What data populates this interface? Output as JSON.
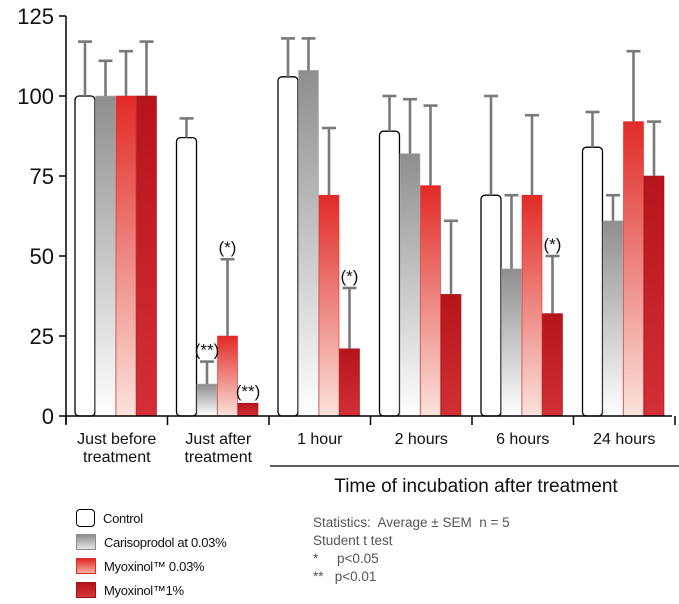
{
  "chart_data": {
    "type": "bar",
    "categories": [
      "Just before\ntreatment",
      "Just after\ntreatment",
      "1 hour",
      "2 hours",
      "6 hours",
      "24 hours"
    ],
    "ylim": [
      0,
      125
    ],
    "yticks": [
      0,
      25,
      50,
      75,
      100,
      125
    ],
    "grid": false,
    "legend_position": "bottom-left",
    "xlabel": "Time of incubation after treatment",
    "ylabel": "",
    "title": "",
    "series": [
      {
        "name": "Control",
        "values": [
          100,
          87,
          106,
          89,
          69,
          84
        ],
        "errors": [
          17,
          6,
          12,
          11,
          31,
          11
        ],
        "color": "#ffffff"
      },
      {
        "name": "Carisoprodol at 0.03%",
        "values": [
          100,
          10,
          108,
          82,
          46,
          61
        ],
        "errors": [
          11,
          7,
          10,
          17,
          23,
          8
        ],
        "color": "#9a9a9a"
      },
      {
        "name": "Myoxinol™ 0.03%",
        "values": [
          100,
          25,
          69,
          72,
          69,
          92
        ],
        "errors": [
          14,
          24,
          21,
          25,
          25,
          22
        ],
        "color": "#e12a26"
      },
      {
        "name": "Myoxinol™1%",
        "values": [
          100,
          4,
          21,
          38,
          32,
          75
        ],
        "errors": [
          17,
          0,
          19,
          23,
          18,
          17
        ],
        "color": "#b4141a"
      }
    ],
    "annotations": [
      {
        "category": 1,
        "series": 1,
        "text": "(**)"
      },
      {
        "category": 1,
        "series": 2,
        "text": "(*)"
      },
      {
        "category": 1,
        "series": 3,
        "text": "(**)"
      },
      {
        "category": 2,
        "series": 3,
        "text": "(*)"
      },
      {
        "category": 4,
        "series": 3,
        "text": "(*)"
      }
    ]
  },
  "legend": {
    "items": [
      "Control",
      "Carisoprodol at 0.03%",
      "Myoxinol™ 0.03%",
      "Myoxinol™1%"
    ]
  },
  "stats": {
    "line1": "Statistics:  Average ± SEM  n = 5",
    "line2": "Student t test",
    "line3": "*     p<0.05",
    "line4": "**   p<0.01"
  }
}
